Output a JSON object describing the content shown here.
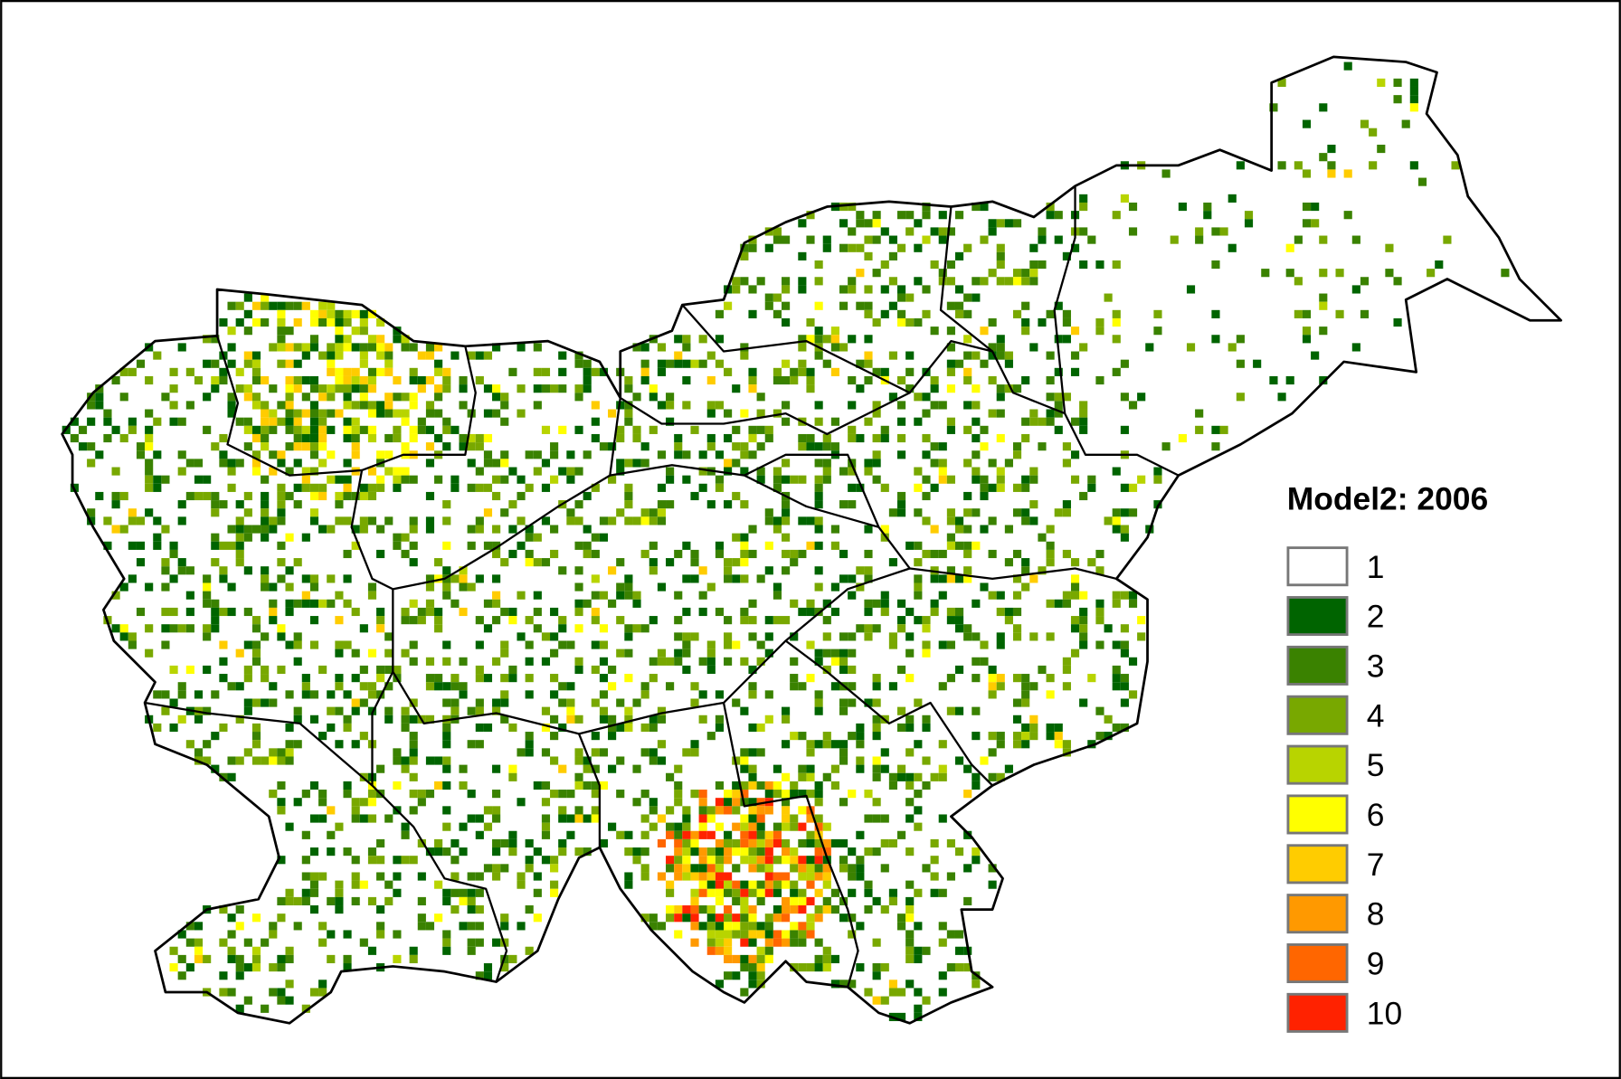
{
  "title": "Model2: 2006",
  "legend": [
    {
      "label": "1",
      "color": "#ffffff"
    },
    {
      "label": "2",
      "color": "#006400"
    },
    {
      "label": "3",
      "color": "#3a8200"
    },
    {
      "label": "4",
      "color": "#78a800"
    },
    {
      "label": "5",
      "color": "#b8d400"
    },
    {
      "label": "6",
      "color": "#ffff00"
    },
    {
      "label": "7",
      "color": "#ffcc00"
    },
    {
      "label": "8",
      "color": "#ff9900"
    },
    {
      "label": "9",
      "color": "#ff6600"
    },
    {
      "label": "10",
      "color": "#ff2200"
    }
  ]
}
